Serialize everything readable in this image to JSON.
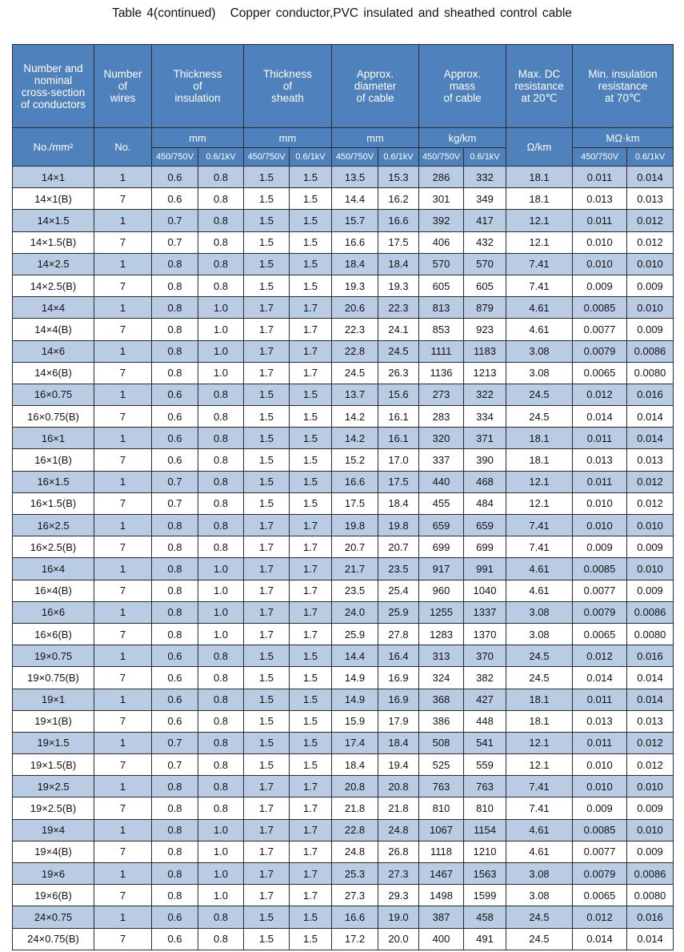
{
  "title": "Table 4(continued)",
  "subtitle": "Copper conductor,PVC insulated and sheathed control cable",
  "headers": {
    "conductors": "Number and\nnominal\ncross-section\nof conductors",
    "wires": "Number\nof\nwires",
    "insulation": "Thickness\nof\ninsulation",
    "sheath": "Thickness\nof\nsheath",
    "diameter": "Approx.\ndiameter\nof cable",
    "mass": "Approx.\nmass\nof cable",
    "resistance": "Max. DC\nresistance\nat 20℃",
    "insres": "Min. insulation\nresistance\nat 70℃"
  },
  "units": {
    "conductors": "No./mm²",
    "wires": "No.",
    "insulation": "mm",
    "sheath": "mm",
    "diameter": "mm",
    "mass": "kg/km",
    "resistance": "Ω/km",
    "insres": "MΩ·km"
  },
  "voltage": {
    "a": "450/750V",
    "b": "0.6/1kV"
  },
  "rows": [
    [
      "14×1",
      "1",
      "0.6",
      "0.8",
      "1.5",
      "1.5",
      "13.5",
      "15.3",
      "286",
      "332",
      "18.1",
      "0.011",
      "0.014"
    ],
    [
      "14×1(B)",
      "7",
      "0.6",
      "0.8",
      "1.5",
      "1.5",
      "14.4",
      "16.2",
      "301",
      "349",
      "18.1",
      "0.013",
      "0.013"
    ],
    [
      "14×1.5",
      "1",
      "0.7",
      "0.8",
      "1.5",
      "1.5",
      "15.7",
      "16.6",
      "392",
      "417",
      "12.1",
      "0.011",
      "0.012"
    ],
    [
      "14×1.5(B)",
      "7",
      "0.7",
      "0.8",
      "1.5",
      "1.5",
      "16.6",
      "17.5",
      "406",
      "432",
      "12.1",
      "0.010",
      "0.012"
    ],
    [
      "14×2.5",
      "1",
      "0.8",
      "0.8",
      "1.5",
      "1.5",
      "18.4",
      "18.4",
      "570",
      "570",
      "7.41",
      "0.010",
      "0.010"
    ],
    [
      "14×2.5(B)",
      "7",
      "0.8",
      "0.8",
      "1.5",
      "1.5",
      "19.3",
      "19.3",
      "605",
      "605",
      "7.41",
      "0.009",
      "0.009"
    ],
    [
      "14×4",
      "1",
      "0.8",
      "1.0",
      "1.7",
      "1.7",
      "20.6",
      "22.3",
      "813",
      "879",
      "4.61",
      "0.0085",
      "0.010"
    ],
    [
      "14×4(B)",
      "7",
      "0.8",
      "1.0",
      "1.7",
      "1.7",
      "22.3",
      "24.1",
      "853",
      "923",
      "4.61",
      "0.0077",
      "0.009"
    ],
    [
      "14×6",
      "1",
      "0.8",
      "1.0",
      "1.7",
      "1.7",
      "22.8",
      "24.5",
      "1111",
      "1183",
      "3.08",
      "0.0079",
      "0.0086"
    ],
    [
      "14×6(B)",
      "7",
      "0.8",
      "1.0",
      "1.7",
      "1.7",
      "24.5",
      "26.3",
      "1136",
      "1213",
      "3.08",
      "0.0065",
      "0.0080"
    ],
    [
      "16×0.75",
      "1",
      "0.6",
      "0.8",
      "1.5",
      "1.5",
      "13.7",
      "15.6",
      "273",
      "322",
      "24.5",
      "0.012",
      "0.016"
    ],
    [
      "16×0.75(B)",
      "7",
      "0.6",
      "0.8",
      "1.5",
      "1.5",
      "14.2",
      "16.1",
      "283",
      "334",
      "24.5",
      "0.014",
      "0.014"
    ],
    [
      "16×1",
      "1",
      "0.6",
      "0.8",
      "1.5",
      "1.5",
      "14.2",
      "16.1",
      "320",
      "371",
      "18.1",
      "0.011",
      "0.014"
    ],
    [
      "16×1(B)",
      "7",
      "0.6",
      "0.8",
      "1.5",
      "1.5",
      "15.2",
      "17.0",
      "337",
      "390",
      "18.1",
      "0.013",
      "0.013"
    ],
    [
      "16×1.5",
      "1",
      "0.7",
      "0.8",
      "1.5",
      "1.5",
      "16.6",
      "17.5",
      "440",
      "468",
      "12.1",
      "0.011",
      "0.012"
    ],
    [
      "16×1.5(B)",
      "7",
      "0.7",
      "0.8",
      "1.5",
      "1.5",
      "17.5",
      "18.4",
      "455",
      "484",
      "12.1",
      "0.010",
      "0.012"
    ],
    [
      "16×2.5",
      "1",
      "0.8",
      "0.8",
      "1.7",
      "1.7",
      "19.8",
      "19.8",
      "659",
      "659",
      "7.41",
      "0.010",
      "0.010"
    ],
    [
      "16×2.5(B)",
      "7",
      "0.8",
      "0.8",
      "1.7",
      "1.7",
      "20.7",
      "20.7",
      "699",
      "699",
      "7.41",
      "0.009",
      "0.009"
    ],
    [
      "16×4",
      "1",
      "0.8",
      "1.0",
      "1.7",
      "1.7",
      "21.7",
      "23.5",
      "917",
      "991",
      "4.61",
      "0.0085",
      "0.010"
    ],
    [
      "16×4(B)",
      "7",
      "0.8",
      "1.0",
      "1.7",
      "1.7",
      "23.5",
      "25.4",
      "960",
      "1040",
      "4.61",
      "0.0077",
      "0.009"
    ],
    [
      "16×6",
      "1",
      "0.8",
      "1.0",
      "1.7",
      "1.7",
      "24.0",
      "25.9",
      "1255",
      "1337",
      "3.08",
      "0.0079",
      "0.0086"
    ],
    [
      "16×6(B)",
      "7",
      "0.8",
      "1.0",
      "1.7",
      "1.7",
      "25.9",
      "27.8",
      "1283",
      "1370",
      "3.08",
      "0.0065",
      "0.0080"
    ],
    [
      "19×0.75",
      "1",
      "0.6",
      "0.8",
      "1.5",
      "1.5",
      "14.4",
      "16.4",
      "313",
      "370",
      "24.5",
      "0.012",
      "0.016"
    ],
    [
      "19×0.75(B)",
      "7",
      "0.6",
      "0.8",
      "1.5",
      "1.5",
      "14.9",
      "16.9",
      "324",
      "382",
      "24.5",
      "0.014",
      "0.014"
    ],
    [
      "19×1",
      "1",
      "0.6",
      "0.8",
      "1.5",
      "1.5",
      "14.9",
      "16.9",
      "368",
      "427",
      "18.1",
      "0.011",
      "0.014"
    ],
    [
      "19×1(B)",
      "7",
      "0.6",
      "0.8",
      "1.5",
      "1.5",
      "15.9",
      "17.9",
      "386",
      "448",
      "18.1",
      "0.013",
      "0.013"
    ],
    [
      "19×1.5",
      "1",
      "0.7",
      "0.8",
      "1.5",
      "1.5",
      "17.4",
      "18.4",
      "508",
      "541",
      "12.1",
      "0.011",
      "0.012"
    ],
    [
      "19×1.5(B)",
      "7",
      "0.7",
      "0.8",
      "1.5",
      "1.5",
      "18.4",
      "19.4",
      "525",
      "559",
      "12.1",
      "0.010",
      "0.012"
    ],
    [
      "19×2.5",
      "1",
      "0.8",
      "0.8",
      "1.7",
      "1.7",
      "20.8",
      "20.8",
      "763",
      "763",
      "7.41",
      "0.010",
      "0.010"
    ],
    [
      "19×2.5(B)",
      "7",
      "0.8",
      "0.8",
      "1.7",
      "1.7",
      "21.8",
      "21.8",
      "810",
      "810",
      "7.41",
      "0.009",
      "0.009"
    ],
    [
      "19×4",
      "1",
      "0.8",
      "1.0",
      "1.7",
      "1.7",
      "22.8",
      "24.8",
      "1067",
      "1154",
      "4.61",
      "0.0085",
      "0.010"
    ],
    [
      "19×4(B)",
      "7",
      "0.8",
      "1.0",
      "1.7",
      "1.7",
      "24.8",
      "26.8",
      "1118",
      "1210",
      "4.61",
      "0.0077",
      "0.009"
    ],
    [
      "19×6",
      "1",
      "0.8",
      "1.0",
      "1.7",
      "1.7",
      "25.3",
      "27.3",
      "1467",
      "1563",
      "3.08",
      "0.0079",
      "0.0086"
    ],
    [
      "19×6(B)",
      "7",
      "0.8",
      "1.0",
      "1.7",
      "1.7",
      "27.3",
      "29.3",
      "1498",
      "1599",
      "3.08",
      "0.0065",
      "0.0080"
    ],
    [
      "24×0.75",
      "1",
      "0.6",
      "0.8",
      "1.5",
      "1.5",
      "16.6",
      "19.0",
      "387",
      "458",
      "24.5",
      "0.012",
      "0.016"
    ],
    [
      "24×0.75(B)",
      "7",
      "0.6",
      "0.8",
      "1.5",
      "1.5",
      "17.2",
      "20.0",
      "400",
      "491",
      "24.5",
      "0.014",
      "0.014"
    ]
  ],
  "colors": {
    "header_bg": "#4f81bd",
    "stripe": "#b9cce4"
  }
}
